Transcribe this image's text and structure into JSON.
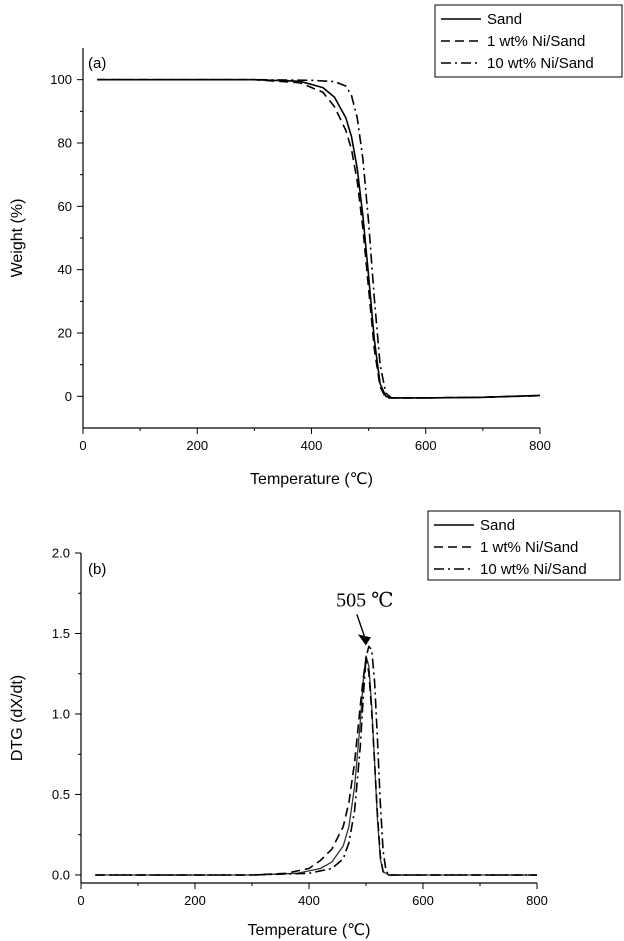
{
  "chart_data": [
    {
      "type": "line",
      "panel_label": "(a)",
      "xlabel": "Temperature (℃)",
      "ylabel": "Weight (%)",
      "xlim": [
        0,
        800
      ],
      "ylim": [
        -10,
        110
      ],
      "xticks": [
        "0",
        "200",
        "400",
        "600",
        "800"
      ],
      "yticks": [
        "0",
        "20",
        "40",
        "60",
        "80",
        "100"
      ],
      "grid": false,
      "legend_position": "top-right",
      "series": [
        {
          "name": "Sand",
          "style": "solid",
          "x": [
            25,
            100,
            200,
            300,
            380,
            420,
            440,
            460,
            470,
            480,
            490,
            500,
            510,
            520,
            530,
            540,
            600,
            700,
            800
          ],
          "y": [
            100,
            100,
            100,
            100,
            99.5,
            97.5,
            94.5,
            88,
            82,
            72,
            57,
            38,
            18,
            4,
            0,
            -0.5,
            -0.5,
            -0.3,
            0.3
          ]
        },
        {
          "name": "1 wt% Ni/Sand",
          "style": "dashed",
          "x": [
            25,
            100,
            200,
            300,
            380,
            420,
            440,
            460,
            470,
            480,
            490,
            500,
            510,
            520,
            530,
            540,
            600,
            700,
            800
          ],
          "y": [
            100,
            100,
            100,
            100,
            99,
            96,
            91.5,
            84,
            78,
            68,
            53,
            34,
            15,
            3,
            -0.5,
            -0.5,
            -0.5,
            -0.3,
            0.2
          ]
        },
        {
          "name": "10 wt% Ni/Sand",
          "style": "dashdot",
          "x": [
            25,
            100,
            200,
            300,
            400,
            440,
            460,
            470,
            480,
            490,
            500,
            510,
            520,
            530,
            540,
            600,
            700,
            800
          ],
          "y": [
            100,
            100,
            100,
            100,
            99.8,
            99.4,
            98,
            95,
            88,
            75,
            55,
            31,
            10,
            1,
            -0.5,
            -0.5,
            -0.3,
            0.3
          ]
        }
      ]
    },
    {
      "type": "line",
      "panel_label": "(b)",
      "xlabel": "Temperature (℃)",
      "ylabel": "DTG (dX/dt)",
      "xlim": [
        0,
        800
      ],
      "ylim": [
        -0.05,
        2.0
      ],
      "xticks": [
        "0",
        "200",
        "400",
        "600",
        "800"
      ],
      "yticks": [
        "0.0",
        "0.5",
        "1.0",
        "1.5",
        "2.0"
      ],
      "grid": false,
      "legend_position": "top-right",
      "annotation": {
        "text": "505 ℃",
        "x": 505,
        "y": 1.42
      },
      "series": [
        {
          "name": "Sand",
          "style": "solid",
          "x": [
            25,
            100,
            200,
            300,
            380,
            420,
            440,
            460,
            470,
            480,
            490,
            495,
            500,
            505,
            510,
            515,
            520,
            525,
            530,
            540,
            600,
            700,
            800
          ],
          "y": [
            0,
            0,
            0,
            0,
            0.01,
            0.04,
            0.08,
            0.18,
            0.3,
            0.55,
            0.95,
            1.2,
            1.36,
            1.3,
            1.05,
            0.7,
            0.35,
            0.1,
            0.02,
            0,
            0,
            0,
            0
          ]
        },
        {
          "name": "1 wt% Ni/Sand",
          "style": "dashed",
          "x": [
            25,
            100,
            200,
            300,
            360,
            400,
            420,
            440,
            460,
            470,
            480,
            490,
            495,
            500,
            505,
            510,
            515,
            520,
            525,
            530,
            540,
            600,
            700,
            800
          ],
          "y": [
            0,
            0,
            0,
            0,
            0.01,
            0.04,
            0.09,
            0.16,
            0.3,
            0.45,
            0.7,
            1.05,
            1.22,
            1.34,
            1.26,
            1.02,
            0.7,
            0.38,
            0.12,
            0.02,
            0,
            0,
            0,
            0
          ]
        },
        {
          "name": "10 wt% Ni/Sand",
          "style": "dashdot",
          "x": [
            25,
            100,
            200,
            300,
            400,
            440,
            460,
            470,
            480,
            490,
            495,
            500,
            505,
            510,
            515,
            520,
            525,
            530,
            535,
            540,
            600,
            700,
            800
          ],
          "y": [
            0,
            0,
            0,
            0,
            0.01,
            0.04,
            0.1,
            0.2,
            0.4,
            0.8,
            1.1,
            1.35,
            1.42,
            1.4,
            1.2,
            0.85,
            0.45,
            0.15,
            0.03,
            0,
            0,
            0,
            0
          ]
        }
      ]
    }
  ]
}
